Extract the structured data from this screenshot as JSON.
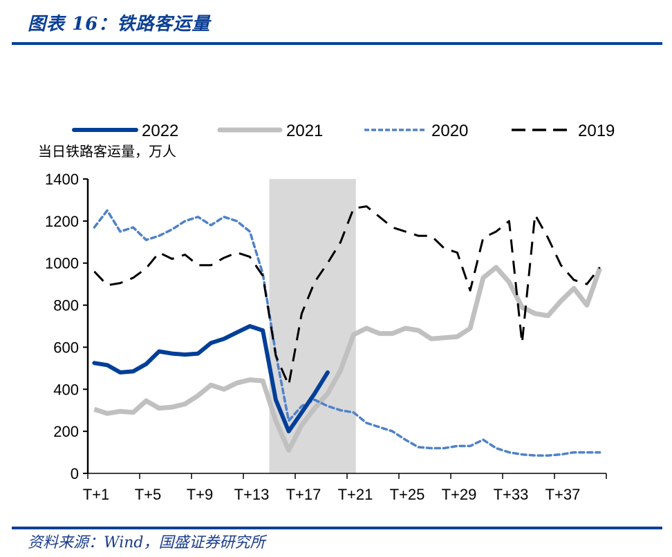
{
  "header": {
    "title": "图表 16：铁路客运量"
  },
  "footer": {
    "source": "资料来源：Wind，国盛证券研究所"
  },
  "colors": {
    "brand": "#003F98",
    "s2022": "#003F98",
    "s2021": "#C0C0C0",
    "s2020": "#4F81C7",
    "s2019": "#000000",
    "shade": "#D9D9D9"
  },
  "chart_data": {
    "type": "line",
    "title": "铁路客运量",
    "ylabel": "当日铁路客运量，万人",
    "xlabel": "",
    "ylim": [
      0,
      1400
    ],
    "yticks": [
      "0",
      "200",
      "400",
      "600",
      "800",
      "1000",
      "1200",
      "1400"
    ],
    "ytick_values": [
      0,
      200,
      400,
      600,
      800,
      1000,
      1200,
      1400
    ],
    "x": [
      "T+1",
      "T+2",
      "T+3",
      "T+4",
      "T+5",
      "T+6",
      "T+7",
      "T+8",
      "T+9",
      "T+10",
      "T+11",
      "T+12",
      "T+13",
      "T+14",
      "T+15",
      "T+16",
      "T+17",
      "T+18",
      "T+19",
      "T+20",
      "T+21",
      "T+22",
      "T+23",
      "T+24",
      "T+25",
      "T+26",
      "T+27",
      "T+28",
      "T+29",
      "T+30",
      "T+31",
      "T+32",
      "T+33",
      "T+34",
      "T+35",
      "T+36",
      "T+37",
      "T+38",
      "T+39",
      "T+40"
    ],
    "xtick_labels": [
      "T+1",
      "T+5",
      "T+9",
      "T+13",
      "T+17",
      "T+21",
      "T+25",
      "T+29",
      "T+33",
      "T+37"
    ],
    "xtick_indices": [
      0,
      4,
      8,
      12,
      16,
      20,
      24,
      28,
      32,
      36
    ],
    "shaded_range": [
      "T+15",
      "T+21"
    ],
    "legend_position": "top",
    "grid": false,
    "series": [
      {
        "name": "2022",
        "style": "solid-thick",
        "values": [
          525,
          515,
          480,
          485,
          520,
          580,
          570,
          565,
          570,
          620,
          640,
          670,
          700,
          680,
          350,
          200,
          290,
          380,
          480,
          null,
          null,
          null,
          null,
          null,
          null,
          null,
          null,
          null,
          null,
          null,
          null,
          null,
          null,
          null,
          null,
          null,
          null,
          null,
          null,
          null
        ]
      },
      {
        "name": "2021",
        "style": "solid-gray",
        "values": [
          305,
          285,
          295,
          290,
          345,
          310,
          315,
          330,
          370,
          420,
          400,
          430,
          445,
          440,
          250,
          110,
          230,
          310,
          380,
          490,
          660,
          690,
          665,
          665,
          690,
          680,
          640,
          645,
          650,
          690,
          930,
          980,
          910,
          790,
          760,
          750,
          820,
          880,
          800,
          975
        ]
      },
      {
        "name": "2020",
        "style": "dotted",
        "values": [
          1170,
          1250,
          1150,
          1170,
          1110,
          1130,
          1160,
          1200,
          1220,
          1180,
          1220,
          1200,
          1150,
          950,
          570,
          250,
          320,
          350,
          320,
          300,
          290,
          240,
          220,
          200,
          160,
          125,
          120,
          120,
          130,
          130,
          160,
          120,
          100,
          90,
          85,
          85,
          90,
          100,
          100,
          100
        ]
      },
      {
        "name": "2019",
        "style": "dashed",
        "values": [
          960,
          895,
          905,
          930,
          975,
          1050,
          1020,
          1040,
          990,
          990,
          1025,
          1050,
          1030,
          940,
          560,
          420,
          760,
          910,
          1000,
          1100,
          1260,
          1270,
          1220,
          1170,
          1150,
          1130,
          1130,
          1070,
          1050,
          870,
          1120,
          1150,
          1200,
          620,
          1230,
          1120,
          990,
          920,
          900,
          980
        ]
      }
    ]
  }
}
